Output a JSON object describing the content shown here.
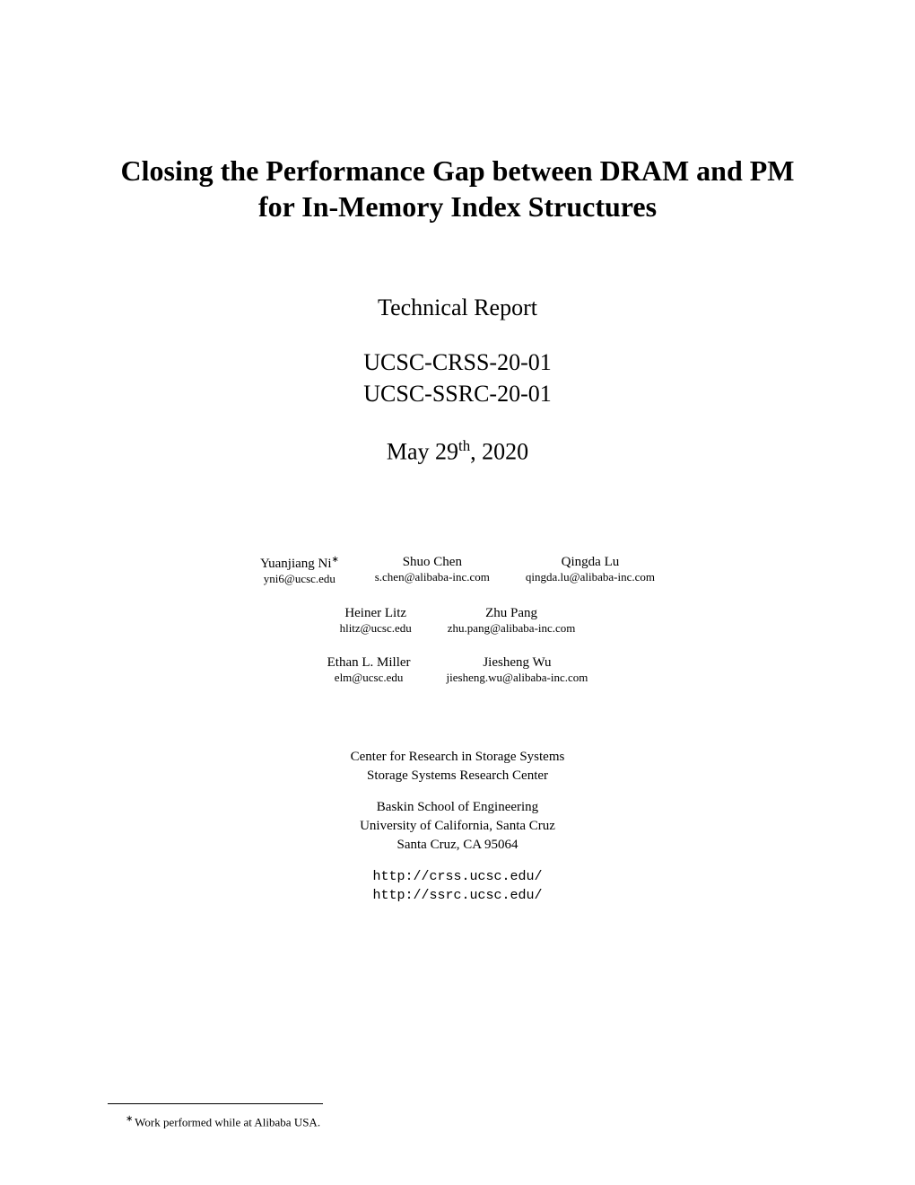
{
  "title": "Closing the Performance Gap between DRAM and PM for In-Memory Index Structures",
  "subtitle": "Technical Report",
  "report_num_1": "UCSC-CRSS-20-01",
  "report_num_2": "UCSC-SSRC-20-01",
  "date_prefix": "May 29",
  "date_sup": "th",
  "date_suffix": ", 2020",
  "authors": {
    "row1": [
      {
        "name": "Yuanjiang Ni",
        "asterisk": "∗",
        "email": "yni6@ucsc.edu"
      },
      {
        "name": "Shuo Chen",
        "email": "s.chen@alibaba-inc.com"
      },
      {
        "name": "Qingda Lu",
        "email": "qingda.lu@alibaba-inc.com"
      }
    ],
    "row2": [
      {
        "name": "Heiner Litz",
        "email": "hlitz@ucsc.edu"
      },
      {
        "name": "Zhu Pang",
        "email": "zhu.pang@alibaba-inc.com"
      }
    ],
    "row3": [
      {
        "name": "Ethan L. Miller",
        "email": "elm@ucsc.edu"
      },
      {
        "name": "Jiesheng Wu",
        "email": "jiesheng.wu@alibaba-inc.com"
      }
    ]
  },
  "affiliation": {
    "group1_line1": "Center for Research in Storage Systems",
    "group1_line2": "Storage Systems Research Center",
    "group2_line1": "Baskin School of Engineering",
    "group2_line2": "University of California, Santa Cruz",
    "group2_line3": "Santa Cruz, CA 95064",
    "url1": "http://crss.ucsc.edu/",
    "url2": "http://ssrc.ucsc.edu/"
  },
  "footnote_marker": "∗",
  "footnote_text": "Work performed while at Alibaba USA."
}
